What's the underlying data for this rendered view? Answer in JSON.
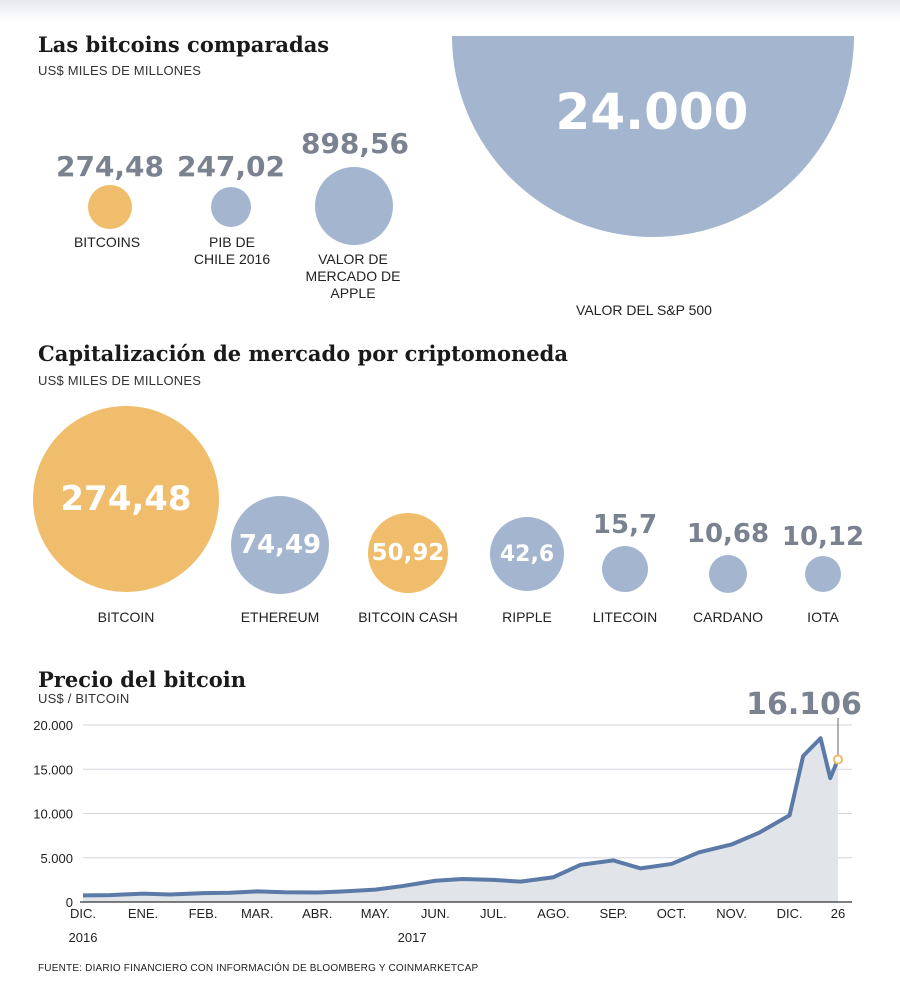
{
  "colors": {
    "gold": "#efbd6b",
    "blue": "#a3b5cf",
    "line": "#5b7aa7",
    "area": "#e1e4e9",
    "value_text": "#7a8290"
  },
  "section1": {
    "title": "Las bitcoins comparadas",
    "subtitle": "US$ MILES DE MILLONES",
    "items": [
      {
        "value": "274,48",
        "label": "BITCOINS",
        "color": "gold"
      },
      {
        "value": "247,02",
        "label": "PIB DE\nCHILE 2016",
        "color": "blue"
      },
      {
        "value": "898,56",
        "label": "VALOR DE\nMERCADO DE\nAPPLE",
        "color": "blue"
      },
      {
        "value": "24.000",
        "label": "VALOR DEL S&P 500",
        "color": "blue"
      }
    ]
  },
  "section2": {
    "title": "Capitalización de mercado por criptomoneda",
    "subtitle": "US$ MILES DE MILLONES",
    "items": [
      {
        "value": "274,48",
        "label": "BITCOIN",
        "color": "gold"
      },
      {
        "value": "74,49",
        "label": "ETHEREUM",
        "color": "blue"
      },
      {
        "value": "50,92",
        "label": "BITCOIN CASH",
        "color": "gold"
      },
      {
        "value": "42,6",
        "label": "RIPPLE",
        "color": "blue"
      },
      {
        "value": "15,7",
        "label": "LITECOIN",
        "color": "blue"
      },
      {
        "value": "10,68",
        "label": "CARDANO",
        "color": "blue"
      },
      {
        "value": "10,12",
        "label": "IOTA",
        "color": "blue"
      }
    ]
  },
  "section3": {
    "title": "Precio del bitcoin",
    "subtitle": "US$ / BITCOIN",
    "last_value_label": "16.106"
  },
  "source": "FUENTE: DIARIO FINANCIERO CON INFORMACIÓN DE BLOOMBERG Y COINMARKETCAP",
  "chart_data": [
    {
      "type": "bubble",
      "title": "Las bitcoins comparadas",
      "unit": "US$ MILES DE MILLONES",
      "categories": [
        "BITCOINS",
        "PIB DE CHILE 2016",
        "VALOR DE MERCADO DE APPLE",
        "VALOR DEL S&P 500"
      ],
      "values": [
        274.48,
        247.02,
        898.56,
        24000
      ]
    },
    {
      "type": "bubble",
      "title": "Capitalización de mercado por criptomoneda",
      "unit": "US$ MILES DE MILLONES",
      "categories": [
        "BITCOIN",
        "ETHEREUM",
        "BITCOIN CASH",
        "RIPPLE",
        "LITECOIN",
        "CARDANO",
        "IOTA"
      ],
      "values": [
        274.48,
        74.49,
        50.92,
        42.6,
        15.7,
        10.68,
        10.12
      ]
    },
    {
      "type": "area",
      "title": "Precio del bitcoin",
      "ylabel": "US$ / BITCOIN",
      "ylim": [
        0,
        20000
      ],
      "yticks": [
        "0",
        "5.000",
        "10.000",
        "15.000",
        "20.000"
      ],
      "xtick_labels": [
        "DIC.",
        "ENE.",
        "FEB.",
        "MAR.",
        "ABR.",
        "MAY.",
        "JUN.",
        "JUL.",
        "AGO.",
        "SEP.",
        "OCT.",
        "NOV.",
        "DIC.",
        "26"
      ],
      "year_labels": [
        "2016",
        "2017"
      ],
      "grid": "horizontal",
      "last_value": 16106,
      "x": [
        "2016-12-01",
        "2016-12-15",
        "2017-01-01",
        "2017-01-15",
        "2017-02-01",
        "2017-02-15",
        "2017-03-01",
        "2017-03-15",
        "2017-04-01",
        "2017-04-15",
        "2017-05-01",
        "2017-05-15",
        "2017-06-01",
        "2017-06-15",
        "2017-07-01",
        "2017-07-15",
        "2017-08-01",
        "2017-08-15",
        "2017-09-01",
        "2017-09-15",
        "2017-10-01",
        "2017-10-15",
        "2017-11-01",
        "2017-11-15",
        "2017-12-01",
        "2017-12-08",
        "2017-12-17",
        "2017-12-22",
        "2017-12-26"
      ],
      "values": [
        750,
        780,
        950,
        850,
        1000,
        1050,
        1200,
        1100,
        1080,
        1200,
        1400,
        1800,
        2400,
        2600,
        2500,
        2300,
        2800,
        4200,
        4700,
        3800,
        4300,
        5600,
        6500,
        7800,
        9800,
        16500,
        18500,
        14000,
        16106
      ]
    }
  ]
}
